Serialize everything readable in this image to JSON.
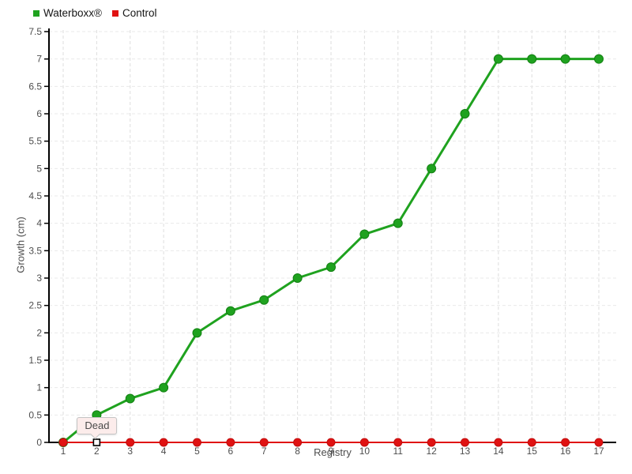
{
  "chart_data": {
    "type": "line",
    "x": [
      1,
      2,
      3,
      4,
      5,
      6,
      7,
      8,
      9,
      10,
      11,
      12,
      13,
      14,
      15,
      16,
      17
    ],
    "xlabel": "Registry",
    "ylabel": "Growth (cm)",
    "ylim": [
      0,
      7.5
    ],
    "ytick_step": 0.5,
    "grid": true,
    "legend_position": "top-left",
    "series": [
      {
        "name": "Waterboxx®",
        "color": "#1fa21f",
        "dot_border": "#128012",
        "values": [
          0,
          0.5,
          0.8,
          1,
          2,
          2.4,
          2.6,
          3,
          3.2,
          3.8,
          4,
          5,
          6,
          7,
          7,
          7,
          7
        ]
      },
      {
        "name": "Control",
        "color": "#e01212",
        "dot_border": "#c00f0f",
        "values": [
          0,
          0,
          0,
          0,
          0,
          0,
          0,
          0,
          0,
          0,
          0,
          0,
          0,
          0,
          0,
          0,
          0
        ]
      }
    ],
    "annotations": [
      {
        "text": "Dead",
        "x": 2,
        "y": 0,
        "series": "Control",
        "marker": "white-square"
      }
    ]
  },
  "colors": {
    "axis": "#000000",
    "grid_v": "#dedede",
    "grid_h": "#e9e9e9",
    "tick_minor": "#c9c9c9",
    "tick_label": "#4d4d4d",
    "tooltip_bg": "#fceceb",
    "tooltip_border": "#c4c4c4"
  }
}
